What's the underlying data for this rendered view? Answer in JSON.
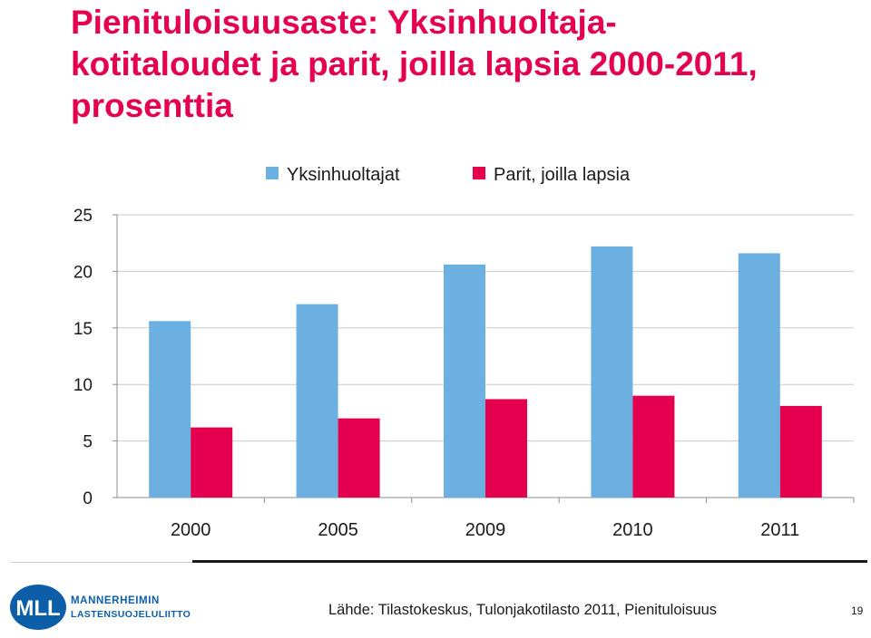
{
  "slide": {
    "title_lines": [
      "Pienituloisuusaste: Yksinhuoltaja-",
      "kotitaloudet ja parit, joilla lapsia 2000-2011,",
      "prosenttia"
    ],
    "title_color": "#e4004f",
    "source": "Lähde: Tilastokeskus, Tulonjakotilasto 2011, Pienituloisuus",
    "page_number": "19"
  },
  "logo": {
    "initials": "MLL",
    "line1": "MANNERHEIMIN",
    "line2": "LASTENSUOJELULIITTO",
    "color": "#0d5ea8"
  },
  "chart_data": {
    "type": "bar",
    "categories": [
      "2000",
      "2005",
      "2009",
      "2010",
      "2011"
    ],
    "series": [
      {
        "name": "Yksinhuoltajat",
        "color": "#6cb0e2",
        "values": [
          15.6,
          17.1,
          20.6,
          22.2,
          21.6
        ]
      },
      {
        "name": "Parit, joilla lapsia",
        "color": "#e4004f",
        "values": [
          6.2,
          7.0,
          8.7,
          9.0,
          8.1
        ]
      }
    ],
    "title": "",
    "xlabel": "",
    "ylabel": "",
    "ylim": [
      0,
      25
    ],
    "yticks": [
      "0",
      "5",
      "10",
      "15",
      "20",
      "25"
    ],
    "grid": true,
    "legend_position": "top"
  }
}
